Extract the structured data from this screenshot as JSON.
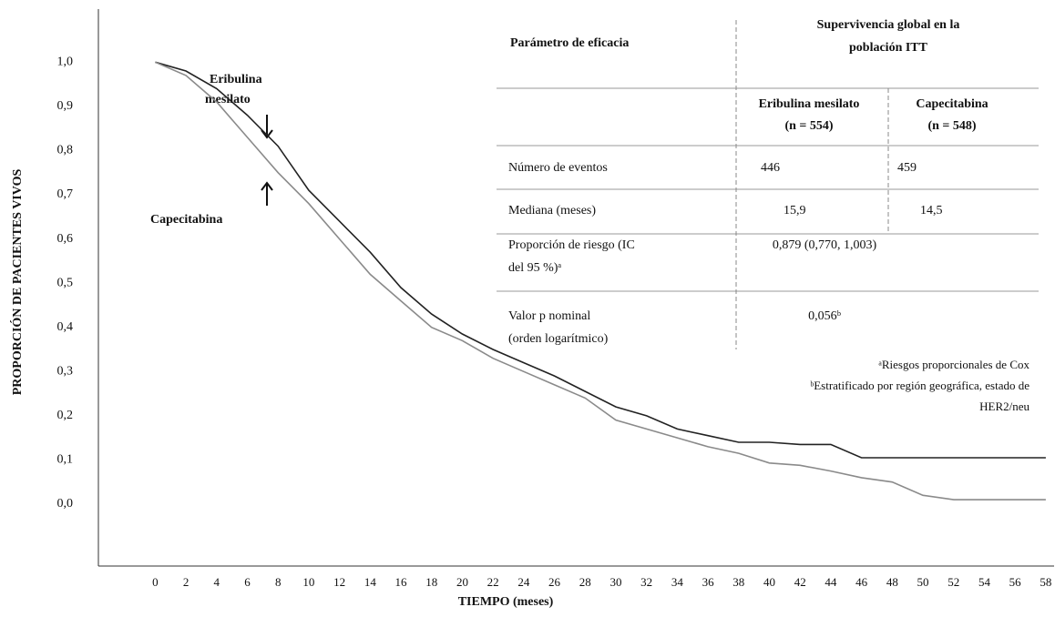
{
  "chart_data": {
    "type": "line",
    "xlabel": "TIEMPO (meses)",
    "ylabel": "PROPORCIÓN DE PACIENTES VIVOS",
    "annotations": [
      [
        "Eribulina",
        "mesilato"
      ],
      [
        "Capecitabina"
      ]
    ],
    "x": [
      0,
      2,
      4,
      6,
      8,
      10,
      12,
      14,
      16,
      18,
      20,
      22,
      24,
      26,
      28,
      30,
      32,
      34,
      36,
      38,
      40,
      42,
      44,
      46,
      48,
      50,
      52,
      58
    ],
    "series": [
      {
        "name": "Eribulina mesilato",
        "color": "#222222",
        "values": [
          1.0,
          0.98,
          0.94,
          0.88,
          0.81,
          0.71,
          0.64,
          0.57,
          0.49,
          0.43,
          0.385,
          0.35,
          0.32,
          0.29,
          0.255,
          0.22,
          0.2,
          0.17,
          0.155,
          0.14,
          0.14,
          0.135,
          0.135,
          0.105,
          0.105,
          0.105,
          0.105,
          0.105
        ]
      },
      {
        "name": "Capecitabina",
        "color": "#8a8a8a",
        "values": [
          1.0,
          0.97,
          0.91,
          0.83,
          0.75,
          0.68,
          0.6,
          0.52,
          0.46,
          0.4,
          0.37,
          0.33,
          0.3,
          0.27,
          0.24,
          0.19,
          0.17,
          0.15,
          0.13,
          0.115,
          0.093,
          0.088,
          0.075,
          0.06,
          0.05,
          0.02,
          0.01,
          0.01
        ]
      }
    ],
    "xlim": [
      -3.7,
      58.6
    ],
    "ylim": [
      -0.14,
      1.12
    ],
    "xticks": [
      0,
      2,
      4,
      6,
      8,
      10,
      12,
      14,
      16,
      18,
      20,
      22,
      24,
      26,
      28,
      30,
      32,
      34,
      36,
      38,
      40,
      42,
      44,
      46,
      48,
      50,
      52,
      54,
      56,
      58
    ],
    "yticks": [
      {
        "value": 0,
        "label": "0,0"
      },
      {
        "value": 0.1,
        "label": "0,1"
      },
      {
        "value": 0.2,
        "label": "0,2"
      },
      {
        "value": 0.3,
        "label": "0,3"
      },
      {
        "value": 0.4,
        "label": "0,4"
      },
      {
        "value": 0.5,
        "label": "0,5"
      },
      {
        "value": 0.6,
        "label": "0,6"
      },
      {
        "value": 0.7,
        "label": "0,7"
      },
      {
        "value": 0.8,
        "label": "0,8"
      },
      {
        "value": 0.9,
        "label": "0,9"
      },
      {
        "value": 1.0,
        "label": "1,0"
      }
    ],
    "grid": false
  },
  "table": {
    "header": {
      "parameter": "Parámetro de eficacia",
      "group": [
        "Supervivencia global en la",
        "población ITT"
      ]
    },
    "columns": [
      [
        "Eribulina mesilato",
        "(n = 554)"
      ],
      [
        "Capecitabina",
        "(n = 548)"
      ]
    ],
    "rows": [
      {
        "label": [
          "Número de eventos"
        ],
        "cells": [
          "446",
          "459"
        ]
      },
      {
        "label": [
          "Mediana (meses)"
        ],
        "cells": [
          "15,9",
          "14,5"
        ]
      },
      {
        "label": [
          "Proporción de riesgo (IC",
          "del 95 %)ᵃ"
        ],
        "cells": [
          "0,879 (0,770, 1,003)"
        ]
      },
      {
        "label": [
          "Valor p nominal",
          "(orden logarítmico)"
        ],
        "cells": [
          "0,056ᵇ"
        ]
      }
    ]
  },
  "footnotes": [
    "ᵃRiesgos proporcionales de Cox",
    "ᵇEstratificado por región geográfica, estado de",
    "HER2/neu"
  ]
}
